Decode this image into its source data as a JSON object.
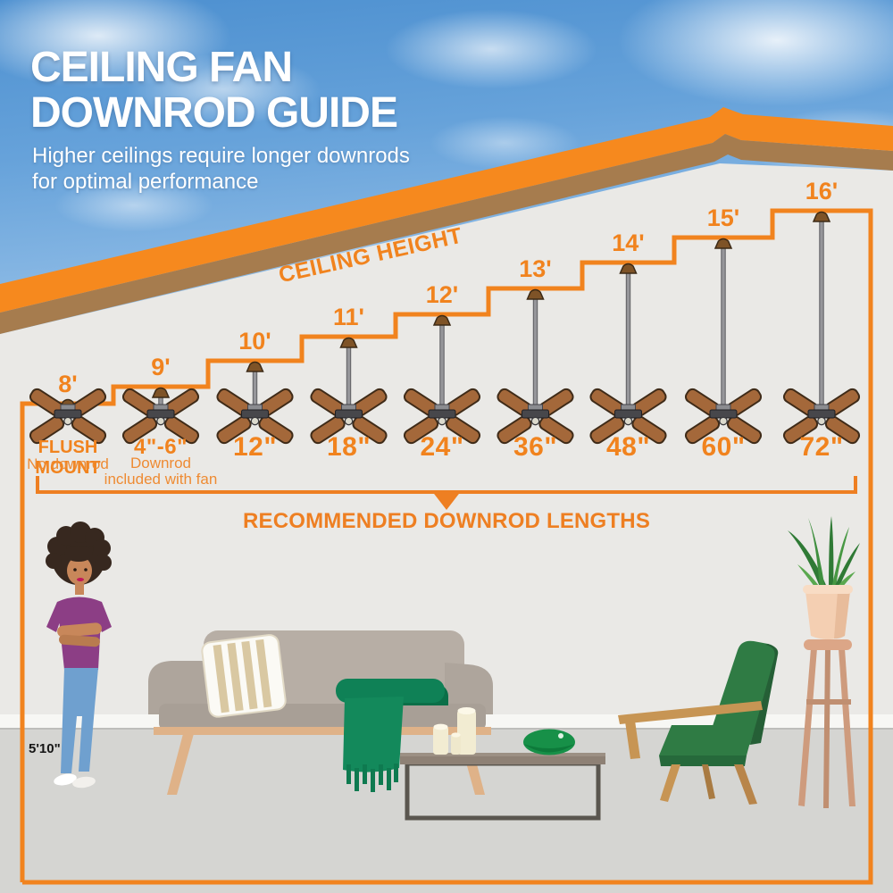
{
  "title": {
    "line1": "CEILING FAN",
    "line2": "DOWNROD GUIDE"
  },
  "subtitle": {
    "line1": "Higher ceilings require longer downrods",
    "line2": "for optimal performance"
  },
  "labels": {
    "ceiling_height": "CEILING HEIGHT",
    "recommended": "RECOMMENDED DOWNROD LENGTHS",
    "person_height": "5'10\""
  },
  "colors": {
    "orange_accent": "#F1831E",
    "roof_orange": "#F6891E",
    "roof_brown": "#A67C4E",
    "wall_gray": "#EAE9E6",
    "floor_gray": "#D5D5D2",
    "blanket_green": "#13895B",
    "chair_green": "#2F7B44",
    "sky_blue": "#5E9FD8"
  },
  "chart_data": {
    "type": "table",
    "title": "Ceiling Fan Downrod Guide",
    "columns": [
      "ceiling_height",
      "recommended_downrod"
    ],
    "rows": [
      {
        "ceiling_height": "8'",
        "downrod": "FLUSH MOUNT",
        "note": "No downrod"
      },
      {
        "ceiling_height": "9'",
        "downrod": "4\"-6\"",
        "note": "Downrod\nincluded with fan"
      },
      {
        "ceiling_height": "10'",
        "downrod": "12\""
      },
      {
        "ceiling_height": "11'",
        "downrod": "18\""
      },
      {
        "ceiling_height": "12'",
        "downrod": "24\""
      },
      {
        "ceiling_height": "13'",
        "downrod": "36\""
      },
      {
        "ceiling_height": "14'",
        "downrod": "48\""
      },
      {
        "ceiling_height": "15'",
        "downrod": "60\""
      },
      {
        "ceiling_height": "16'",
        "downrod": "72\""
      }
    ]
  }
}
